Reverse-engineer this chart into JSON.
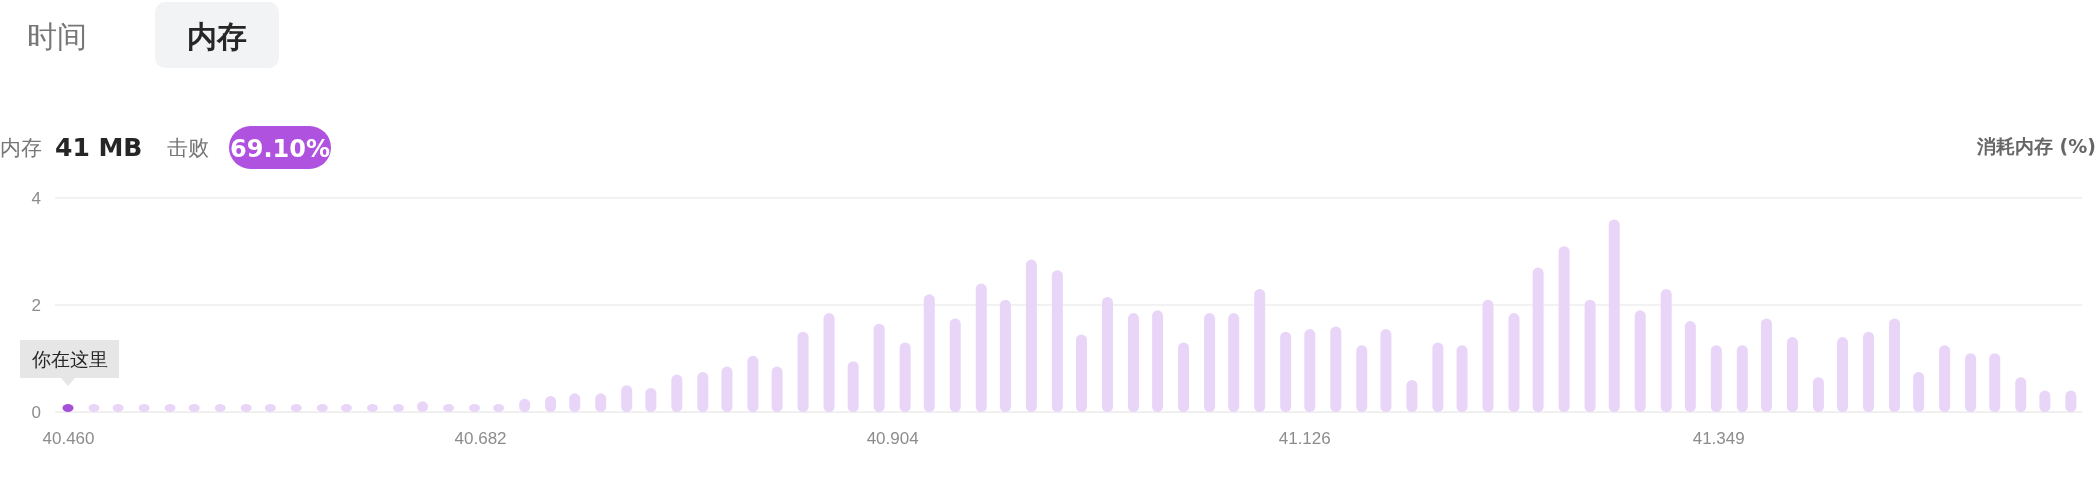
{
  "chart_data": {
    "type": "bar",
    "ylabel": "消耗内存 (%)",
    "annotations": [
      "时间",
      "内存",
      "内存",
      "41 MB",
      "击败",
      "69.10%",
      {
        "text": "你在这里",
        "x": 40.46,
        "y": 0.15
      }
    ],
    "x": [
      40.46,
      40.474,
      40.487,
      40.501,
      40.515,
      40.528,
      40.542,
      40.556,
      40.569,
      40.583,
      40.597,
      40.61,
      40.624,
      40.638,
      40.651,
      40.665,
      40.679,
      40.692,
      40.706,
      40.72,
      40.733,
      40.747,
      40.761,
      40.774,
      40.788,
      40.802,
      40.815,
      40.829,
      40.842,
      40.856,
      40.87,
      40.883,
      40.897,
      40.911,
      40.924,
      40.938,
      40.952,
      40.965,
      40.979,
      40.993,
      41.006,
      41.02,
      41.034,
      41.047,
      41.061,
      41.075,
      41.088,
      41.102,
      41.116,
      41.129,
      41.143,
      41.157,
      41.17,
      41.184,
      41.198,
      41.211,
      41.225,
      41.239,
      41.252,
      41.266,
      41.28,
      41.293,
      41.307,
      41.321,
      41.334,
      41.348,
      41.362,
      41.375,
      41.389,
      41.403,
      41.416,
      41.43,
      41.444,
      41.457,
      41.471,
      41.485,
      41.498,
      41.512,
      41.525,
      41.539
    ],
    "values": [
      0.15,
      0.15,
      0.15,
      0.15,
      0.15,
      0.15,
      0.15,
      0.15,
      0.15,
      0.15,
      0.15,
      0.15,
      0.15,
      0.15,
      0.2,
      0.15,
      0.15,
      0.15,
      0.25,
      0.3,
      0.35,
      0.35,
      0.5,
      0.45,
      0.7,
      0.75,
      0.85,
      1.05,
      0.85,
      1.5,
      1.85,
      0.95,
      1.65,
      1.3,
      2.2,
      1.75,
      2.4,
      2.1,
      2.85,
      2.65,
      1.45,
      2.15,
      1.85,
      1.9,
      1.3,
      1.85,
      1.85,
      2.3,
      1.5,
      1.55,
      1.6,
      1.25,
      1.55,
      0.6,
      1.3,
      1.25,
      2.1,
      1.85,
      2.7,
      3.1,
      2.1,
      3.6,
      1.9,
      2.3,
      1.7,
      1.25,
      1.25,
      1.75,
      1.4,
      0.65,
      1.4,
      1.5,
      1.75,
      0.75,
      1.25,
      1.1,
      1.1,
      0.65,
      0.4,
      0.4
    ],
    "colors": [
      "#a64fd9",
      "#e9d5f7",
      "#e9d5f7",
      "#e9d5f7",
      "#e9d5f7",
      "#e9d5f7",
      "#e9d5f7",
      "#e9d5f7",
      "#e9d5f7",
      "#e9d5f7",
      "#e9d5f7",
      "#e9d5f7",
      "#e9d5f7",
      "#e9d5f7",
      "#e9d5f7",
      "#e9d5f7",
      "#e9d5f7",
      "#e9d5f7",
      "#e9d5f7",
      "#e9d5f7",
      "#e9d5f7",
      "#e9d5f7",
      "#e9d5f7",
      "#e9d5f7",
      "#e9d5f7",
      "#e9d5f7",
      "#e9d5f7",
      "#e9d5f7",
      "#e9d5f7",
      "#e9d5f7",
      "#e9d5f7",
      "#e9d5f7",
      "#e9d5f7",
      "#e9d5f7",
      "#e9d5f7",
      "#e9d5f7",
      "#e9d5f7",
      "#e9d5f7",
      "#e9d5f7",
      "#e9d5f7",
      "#e9d5f7",
      "#e9d5f7",
      "#e9d5f7",
      "#e9d5f7",
      "#e9d5f7",
      "#e9d5f7",
      "#e9d5f7",
      "#e9d5f7",
      "#e9d5f7",
      "#e9d5f7",
      "#e9d5f7",
      "#e9d5f7",
      "#e9d5f7",
      "#e9d5f7",
      "#e9d5f7",
      "#e9d5f7",
      "#e9d5f7",
      "#e9d5f7",
      "#e9d5f7",
      "#e9d5f7",
      "#e9d5f7",
      "#e9d5f7",
      "#e9d5f7",
      "#e9d5f7",
      "#e9d5f7",
      "#e9d5f7",
      "#e9d5f7",
      "#e9d5f7",
      "#e9d5f7",
      "#e9d5f7",
      "#e9d5f7",
      "#e9d5f7",
      "#e9d5f7",
      "#e9d5f7",
      "#e9d5f7",
      "#e9d5f7",
      "#e9d5f7",
      "#e9d5f7",
      "#e9d5f7",
      "#e9d5f7"
    ],
    "xlim": [
      40.453,
      41.545
    ],
    "xticks": [
      {
        "value": 40.46,
        "label": "40.460"
      },
      40.682,
      40.904,
      41.126,
      41.349
    ],
    "ylim": [
      0,
      4
    ],
    "yticks": [
      0,
      2,
      4
    ],
    "grid": "y"
  }
}
